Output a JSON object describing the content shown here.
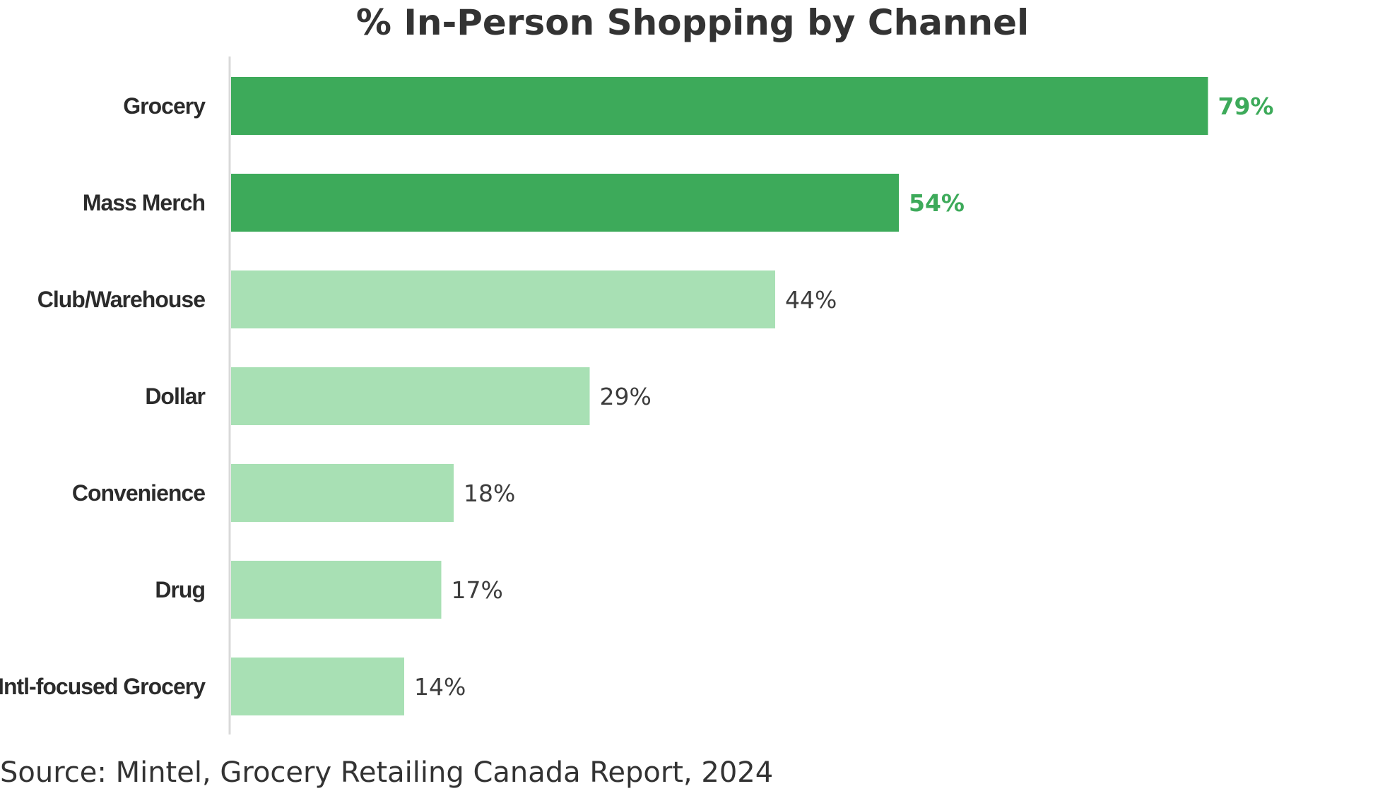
{
  "chart_data": {
    "type": "bar",
    "orientation": "horizontal",
    "title": "% In-Person Shopping by Channel",
    "categories": [
      "Grocery",
      "Mass Merch",
      "Club/Warehouse",
      "Dollar",
      "Convenience",
      "Drug",
      "Intl-focused Grocery"
    ],
    "values": [
      79,
      54,
      44,
      29,
      18,
      17,
      14
    ],
    "value_labels": [
      "79%",
      "54%",
      "44%",
      "29%",
      "18%",
      "17%",
      "14%"
    ],
    "highlighted": [
      true,
      true,
      false,
      false,
      false,
      false,
      false
    ],
    "xlim": [
      0,
      100
    ],
    "grid": false,
    "legend": "none",
    "colors": {
      "highlight_bar": "#3daa5a",
      "normal_bar": "#a8e0b4",
      "highlight_text": "#3daa5a",
      "normal_text": "#3d3d3d",
      "axis": "#d9d9d9"
    }
  },
  "source": "Source: Mintel, Grocery Retailing Canada Report, 2024"
}
